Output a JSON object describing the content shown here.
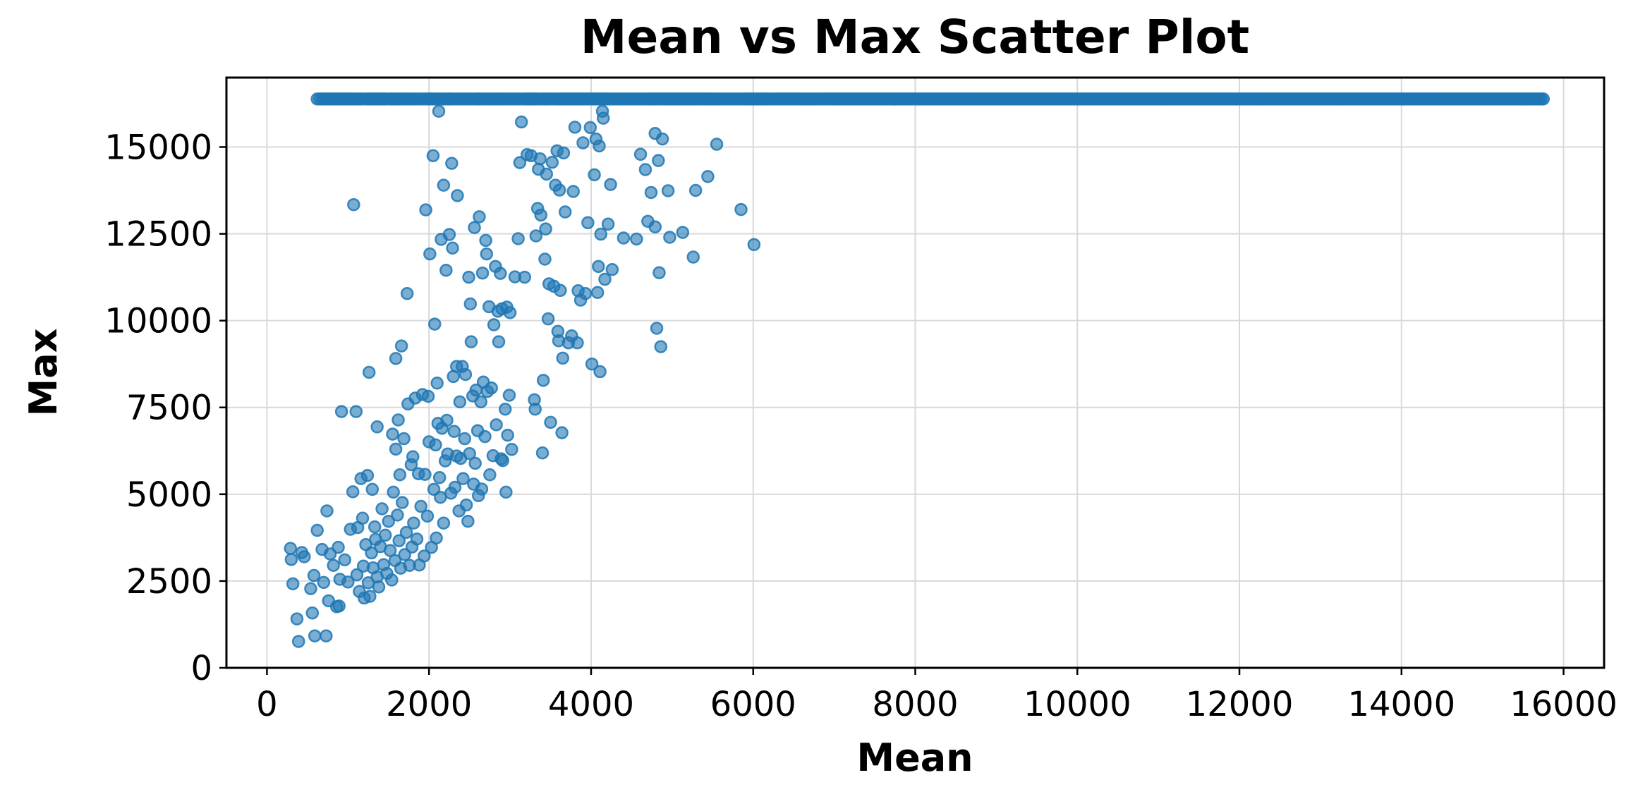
{
  "chart_data": {
    "type": "scatter",
    "title": "Mean vs Max Scatter Plot",
    "xlabel": "Mean",
    "ylabel": "Max",
    "xlim": [
      -500,
      16500
    ],
    "ylim": [
      0,
      17000
    ],
    "xticks": [
      0,
      2000,
      4000,
      6000,
      8000,
      10000,
      12000,
      14000,
      16000
    ],
    "yticks": [
      0,
      2500,
      5000,
      7500,
      10000,
      12500,
      15000
    ],
    "grid": true,
    "legend": "none",
    "marker_color": "#1f77b4",
    "marker_alpha": 0.6,
    "capped_max": 16384,
    "capped_mean": [
      620,
      680,
      940,
      1130,
      1190,
      1230,
      1390,
      1410,
      1440,
      1460,
      1500,
      1550,
      1610,
      1690,
      1780,
      1840,
      1880,
      1950,
      2010,
      2060,
      2120,
      2180,
      2240,
      2290,
      2360,
      2420,
      2480,
      2550,
      2610,
      2630,
      2700,
      2760,
      2820,
      2900,
      2970,
      3040,
      3110,
      3180,
      3260,
      3340,
      3410,
      3490,
      3560,
      3640,
      3720,
      3800,
      3880,
      3960,
      4040,
      4120,
      4200,
      4290,
      4380,
      4470,
      4560,
      4650,
      4740,
      4840,
      4930,
      5030,
      5130,
      5230,
      5340,
      5450,
      5560,
      5680,
      5800,
      5920,
      6050,
      6180,
      6300,
      6440,
      6580,
      6720,
      6860,
      7000,
      7150,
      7300,
      7450,
      7600,
      7700,
      7850,
      8000,
      8150,
      8300,
      8450,
      8600,
      8750,
      8900,
      9050,
      9200,
      9350,
      9500,
      9650,
      9800,
      9950,
      10100,
      10250,
      10400,
      10550,
      10700,
      10850,
      11000,
      11200,
      11350,
      11500,
      11650,
      11800,
      11950,
      12100,
      12250,
      12400,
      12550,
      12700,
      12850,
      13000,
      13100,
      13300,
      13500,
      13650,
      13800,
      13850,
      14100,
      14250,
      14300,
      14500,
      14600,
      14700,
      14800,
      15000,
      15050,
      15100,
      15300,
      15450,
      15650,
      15750
    ],
    "points": [
      [
        290,
        3440
      ],
      [
        300,
        3120
      ],
      [
        320,
        2420
      ],
      [
        370,
        1410
      ],
      [
        390,
        760
      ],
      [
        430,
        3320
      ],
      [
        460,
        3200
      ],
      [
        540,
        2280
      ],
      [
        560,
        1580
      ],
      [
        580,
        2660
      ],
      [
        590,
        920
      ],
      [
        620,
        3960
      ],
      [
        680,
        3410
      ],
      [
        700,
        2460
      ],
      [
        730,
        920
      ],
      [
        740,
        4520
      ],
      [
        760,
        1930
      ],
      [
        780,
        3280
      ],
      [
        820,
        2950
      ],
      [
        860,
        1760
      ],
      [
        880,
        3470
      ],
      [
        890,
        1780
      ],
      [
        900,
        2550
      ],
      [
        920,
        7380
      ],
      [
        960,
        3110
      ],
      [
        1000,
        2470
      ],
      [
        1030,
        3990
      ],
      [
        1060,
        5070
      ],
      [
        1070,
        13340
      ],
      [
        1100,
        7380
      ],
      [
        1110,
        2680
      ],
      [
        1120,
        4040
      ],
      [
        1140,
        2200
      ],
      [
        1160,
        5450
      ],
      [
        1180,
        4310
      ],
      [
        1190,
        2930
      ],
      [
        1200,
        2010
      ],
      [
        1220,
        3550
      ],
      [
        1240,
        5540
      ],
      [
        1250,
        2450
      ],
      [
        1260,
        8510
      ],
      [
        1270,
        2060
      ],
      [
        1290,
        3310
      ],
      [
        1300,
        5140
      ],
      [
        1310,
        2880
      ],
      [
        1330,
        4060
      ],
      [
        1340,
        3700
      ],
      [
        1360,
        2620
      ],
      [
        1360,
        6940
      ],
      [
        1380,
        2330
      ],
      [
        1400,
        3490
      ],
      [
        1420,
        4580
      ],
      [
        1440,
        2970
      ],
      [
        1460,
        3820
      ],
      [
        1480,
        2720
      ],
      [
        1500,
        4220
      ],
      [
        1520,
        3380
      ],
      [
        1540,
        2530
      ],
      [
        1550,
        6730
      ],
      [
        1560,
        5060
      ],
      [
        1580,
        3090
      ],
      [
        1590,
        6300
      ],
      [
        1590,
        8910
      ],
      [
        1610,
        4400
      ],
      [
        1620,
        7140
      ],
      [
        1630,
        3660
      ],
      [
        1640,
        5560
      ],
      [
        1650,
        2870
      ],
      [
        1660,
        9270
      ],
      [
        1670,
        4760
      ],
      [
        1690,
        6600
      ],
      [
        1700,
        3260
      ],
      [
        1720,
        3900
      ],
      [
        1730,
        10780
      ],
      [
        1740,
        7600
      ],
      [
        1760,
        2950
      ],
      [
        1780,
        5850
      ],
      [
        1790,
        3480
      ],
      [
        1800,
        6080
      ],
      [
        1810,
        4170
      ],
      [
        1830,
        7770
      ],
      [
        1850,
        3710
      ],
      [
        1870,
        5590
      ],
      [
        1880,
        2960
      ],
      [
        1900,
        4650
      ],
      [
        1920,
        7870
      ],
      [
        1940,
        3220
      ],
      [
        1950,
        5570
      ],
      [
        1960,
        13190
      ],
      [
        1980,
        4370
      ],
      [
        1990,
        7820
      ],
      [
        2000,
        6510
      ],
      [
        2010,
        11920
      ],
      [
        2030,
        3470
      ],
      [
        2050,
        14750
      ],
      [
        2060,
        5140
      ],
      [
        2070,
        9900
      ],
      [
        2080,
        6420
      ],
      [
        2090,
        3740
      ],
      [
        2100,
        8200
      ],
      [
        2110,
        7040
      ],
      [
        2120,
        16030
      ],
      [
        2130,
        5480
      ],
      [
        2140,
        4910
      ],
      [
        2150,
        12340
      ],
      [
        2160,
        6900
      ],
      [
        2180,
        4170
      ],
      [
        2180,
        13900
      ],
      [
        2200,
        5960
      ],
      [
        2210,
        11450
      ],
      [
        2220,
        7130
      ],
      [
        2230,
        6160
      ],
      [
        2250,
        12480
      ],
      [
        2270,
        5030
      ],
      [
        2280,
        14530
      ],
      [
        2290,
        12090
      ],
      [
        2300,
        8390
      ],
      [
        2310,
        6810
      ],
      [
        2320,
        5200
      ],
      [
        2340,
        6100
      ],
      [
        2340,
        8680
      ],
      [
        2350,
        13600
      ],
      [
        2370,
        4520
      ],
      [
        2380,
        7660
      ],
      [
        2390,
        6030
      ],
      [
        2410,
        8680
      ],
      [
        2420,
        5450
      ],
      [
        2440,
        6600
      ],
      [
        2450,
        8450
      ],
      [
        2460,
        4690
      ],
      [
        2480,
        4220
      ],
      [
        2490,
        11250
      ],
      [
        2500,
        6170
      ],
      [
        2510,
        10480
      ],
      [
        2520,
        9390
      ],
      [
        2540,
        7830
      ],
      [
        2550,
        5290
      ],
      [
        2560,
        12680
      ],
      [
        2570,
        5890
      ],
      [
        2580,
        8000
      ],
      [
        2600,
        6830
      ],
      [
        2610,
        4960
      ],
      [
        2620,
        12990
      ],
      [
        2640,
        7660
      ],
      [
        2650,
        5150
      ],
      [
        2660,
        11370
      ],
      [
        2670,
        8230
      ],
      [
        2690,
        6660
      ],
      [
        2700,
        12310
      ],
      [
        2710,
        11920
      ],
      [
        2720,
        7960
      ],
      [
        2740,
        10400
      ],
      [
        2750,
        5560
      ],
      [
        2770,
        8060
      ],
      [
        2790,
        6110
      ],
      [
        2800,
        9880
      ],
      [
        2820,
        11560
      ],
      [
        2830,
        7000
      ],
      [
        2850,
        10270
      ],
      [
        2860,
        9390
      ],
      [
        2880,
        11360
      ],
      [
        2890,
        6020
      ],
      [
        2900,
        10340
      ],
      [
        2910,
        5970
      ],
      [
        2940,
        7450
      ],
      [
        2950,
        5060
      ],
      [
        2960,
        10390
      ],
      [
        2970,
        6700
      ],
      [
        2990,
        7850
      ],
      [
        3000,
        10230
      ],
      [
        3020,
        6290
      ],
      [
        3060,
        11260
      ],
      [
        3100,
        12360
      ],
      [
        3120,
        14550
      ],
      [
        3140,
        15720
      ],
      [
        3180,
        11250
      ],
      [
        3210,
        14780
      ],
      [
        3260,
        14750
      ],
      [
        3300,
        7720
      ],
      [
        3310,
        7450
      ],
      [
        3320,
        12440
      ],
      [
        3340,
        13230
      ],
      [
        3350,
        14360
      ],
      [
        3370,
        14660
      ],
      [
        3380,
        13040
      ],
      [
        3400,
        6190
      ],
      [
        3410,
        8280
      ],
      [
        3430,
        11770
      ],
      [
        3440,
        12640
      ],
      [
        3450,
        14220
      ],
      [
        3470,
        10050
      ],
      [
        3480,
        11060
      ],
      [
        3500,
        7070
      ],
      [
        3520,
        14560
      ],
      [
        3540,
        10990
      ],
      [
        3560,
        13900
      ],
      [
        3580,
        14890
      ],
      [
        3590,
        9690
      ],
      [
        3600,
        9420
      ],
      [
        3610,
        13760
      ],
      [
        3620,
        10870
      ],
      [
        3640,
        6770
      ],
      [
        3650,
        8920
      ],
      [
        3660,
        14830
      ],
      [
        3680,
        13130
      ],
      [
        3720,
        9360
      ],
      [
        3760,
        9560
      ],
      [
        3780,
        13720
      ],
      [
        3800,
        15570
      ],
      [
        3830,
        9360
      ],
      [
        3840,
        10860
      ],
      [
        3870,
        10590
      ],
      [
        3900,
        15120
      ],
      [
        3930,
        10780
      ],
      [
        3960,
        12820
      ],
      [
        3990,
        15560
      ],
      [
        4010,
        8750
      ],
      [
        4040,
        14200
      ],
      [
        4060,
        15230
      ],
      [
        4080,
        10810
      ],
      [
        4090,
        11560
      ],
      [
        4100,
        15030
      ],
      [
        4110,
        8530
      ],
      [
        4120,
        12490
      ],
      [
        4140,
        16030
      ],
      [
        4150,
        15830
      ],
      [
        4170,
        11190
      ],
      [
        4210,
        12780
      ],
      [
        4240,
        13920
      ],
      [
        4260,
        11470
      ],
      [
        4400,
        12380
      ],
      [
        4560,
        12350
      ],
      [
        4610,
        14790
      ],
      [
        4670,
        14350
      ],
      [
        4700,
        12860
      ],
      [
        4740,
        13690
      ],
      [
        4790,
        12700
      ],
      [
        4790,
        15390
      ],
      [
        4810,
        9780
      ],
      [
        4830,
        14610
      ],
      [
        4840,
        11380
      ],
      [
        4860,
        9250
      ],
      [
        4880,
        15230
      ],
      [
        4950,
        13740
      ],
      [
        4970,
        12400
      ],
      [
        5130,
        12540
      ],
      [
        5260,
        11830
      ],
      [
        5290,
        13750
      ],
      [
        5440,
        14150
      ],
      [
        5550,
        15080
      ],
      [
        5850,
        13200
      ],
      [
        6010,
        12190
      ]
    ]
  }
}
